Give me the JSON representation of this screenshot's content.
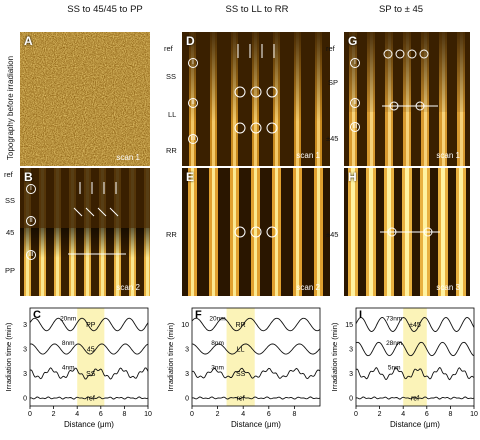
{
  "columns": [
    {
      "title": "SS to 45/45 to PP"
    },
    {
      "title": "SS to LL to RR"
    },
    {
      "title": "SP to ± 45"
    }
  ],
  "side_label": "Topography before irradiation",
  "panels": {
    "A": {
      "label": "A",
      "scan": "scan 1"
    },
    "B": {
      "label": "B",
      "scan": "scan 2",
      "axis_labels": [
        "ref",
        "SS",
        "45",
        "PP"
      ],
      "row_marks": [
        "I",
        "II",
        "III"
      ]
    },
    "D": {
      "label": "D",
      "scan": "scan 1",
      "axis_labels": [
        "ref",
        "SS",
        "LL",
        "RR"
      ],
      "row_marks": [
        "I",
        "II",
        "III"
      ]
    },
    "E": {
      "label": "E",
      "scan": "scan 2",
      "axis_labels": [
        "RR"
      ]
    },
    "G": {
      "label": "G",
      "scan": "scan 1",
      "axis_labels": [
        "ref",
        "SP",
        "±45"
      ],
      "row_marks": [
        "I",
        "II",
        "III"
      ]
    },
    "H": {
      "label": "H",
      "scan": "scan 3",
      "axis_labels": [
        "±45"
      ]
    }
  },
  "chart_data": [
    {
      "type": "line",
      "panel": "C",
      "xlabel": "Distance (μm)",
      "ylabel": "Irradiation time (min)",
      "xlim": [
        0,
        10
      ],
      "xticks": [
        0,
        2,
        4,
        6,
        8,
        10
      ],
      "ytick_labels": [
        "3",
        "3",
        "3",
        "0"
      ],
      "traces": [
        {
          "label": "PP",
          "offset": 3,
          "amplitude_nm": 20,
          "annotation": "20nm"
        },
        {
          "label": "45",
          "offset": 2,
          "amplitude_nm": 8,
          "annotation": "8nm"
        },
        {
          "label": "SS",
          "offset": 1,
          "amplitude_nm": 4,
          "annotation": "4nm"
        },
        {
          "label": "ref",
          "offset": 0,
          "amplitude_nm": 0,
          "annotation": ""
        }
      ],
      "highlight": [
        4.0,
        6.3
      ]
    },
    {
      "type": "line",
      "panel": "F",
      "xlabel": "Distance (μm)",
      "ylabel": "Irradiation time (min)",
      "xlim": [
        0,
        10
      ],
      "xticks": [
        0,
        2,
        4,
        6,
        8
      ],
      "ytick_labels": [
        "10",
        "3",
        "3",
        "0"
      ],
      "traces": [
        {
          "label": "RR",
          "offset": 3,
          "amplitude_nm": 20,
          "annotation": "20nm"
        },
        {
          "label": "LL",
          "offset": 2,
          "amplitude_nm": 8,
          "annotation": "8nm"
        },
        {
          "label": "SS",
          "offset": 1,
          "amplitude_nm": 3,
          "annotation": "3nm"
        },
        {
          "label": "ref",
          "offset": 0,
          "amplitude_nm": 0,
          "annotation": ""
        }
      ],
      "highlight": [
        2.7,
        4.9
      ]
    },
    {
      "type": "line",
      "panel": "I",
      "xlabel": "Distance (μm)",
      "ylabel": "Irradiation time (min)",
      "xlim": [
        0,
        10
      ],
      "xticks": [
        0,
        2,
        4,
        6,
        8,
        10
      ],
      "ytick_labels": [
        "15",
        "3",
        "3",
        "0"
      ],
      "traces": [
        {
          "label": "±45",
          "offset": 3,
          "amplitude_nm": 73,
          "annotation": "73nm"
        },
        {
          "label": "",
          "offset": 2,
          "amplitude_nm": 28,
          "annotation": "28nm"
        },
        {
          "label": "",
          "offset": 1,
          "amplitude_nm": 5,
          "annotation": "5nm"
        },
        {
          "label": "ref",
          "offset": 0,
          "amplitude_nm": 0,
          "annotation": ""
        }
      ],
      "highlight": [
        4.0,
        6.0
      ]
    }
  ],
  "plot_letters": {
    "C": "C",
    "F": "F",
    "I": "I"
  },
  "colors": {
    "afm_dark": "#2a1700",
    "afm_light": "#f6d060",
    "highlight": "#fbf3b8"
  }
}
